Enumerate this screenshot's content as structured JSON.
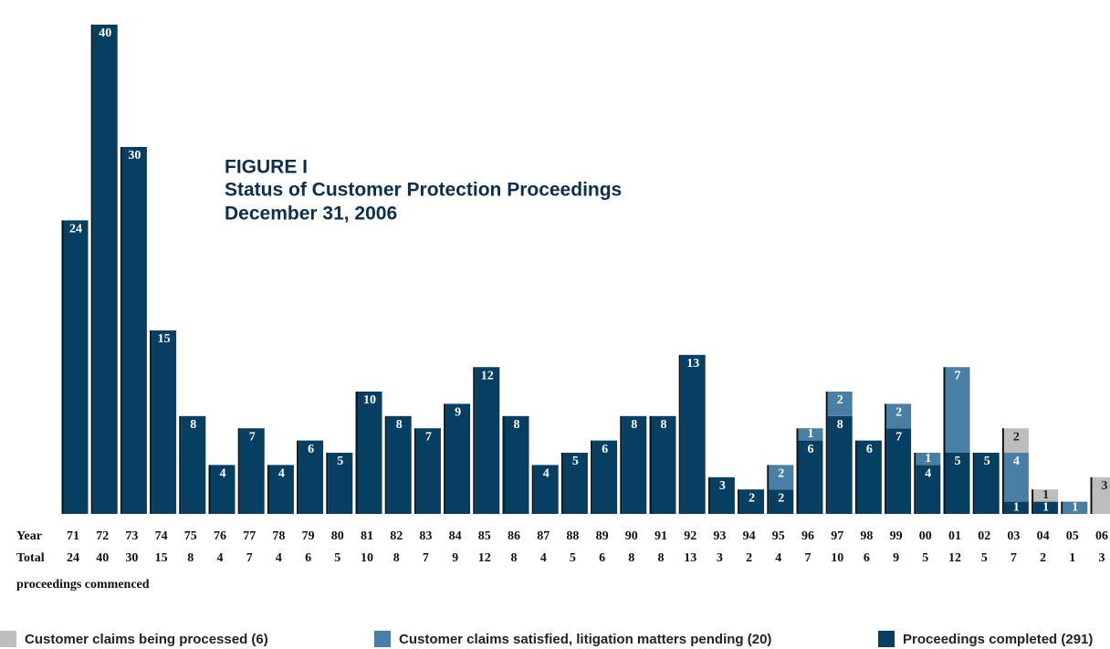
{
  "chart_data": {
    "type": "stacked-bar",
    "title": [
      "FIGURE I",
      "Status of Customer Protection Proceedings",
      "December 31, 2006"
    ],
    "row_labels": {
      "year": "Year",
      "total": "Total",
      "note": "proceedings commenced"
    },
    "categories": [
      "71",
      "72",
      "73",
      "74",
      "75",
      "76",
      "77",
      "78",
      "79",
      "80",
      "81",
      "82",
      "83",
      "84",
      "85",
      "86",
      "87",
      "88",
      "89",
      "90",
      "91",
      "92",
      "93",
      "94",
      "95",
      "96",
      "97",
      "98",
      "99",
      "00",
      "01",
      "02",
      "03",
      "04",
      "05",
      "06"
    ],
    "totals": [
      24,
      40,
      30,
      15,
      8,
      4,
      7,
      4,
      6,
      5,
      10,
      8,
      7,
      9,
      12,
      8,
      4,
      5,
      6,
      8,
      8,
      13,
      3,
      2,
      4,
      7,
      10,
      6,
      9,
      5,
      12,
      5,
      7,
      2,
      1,
      3
    ],
    "ylim": [
      0,
      40
    ],
    "series": [
      {
        "name": "Proceedings completed (291)",
        "color": "#073f63",
        "values": [
          24,
          40,
          30,
          15,
          8,
          4,
          7,
          4,
          6,
          5,
          10,
          8,
          7,
          9,
          12,
          8,
          4,
          5,
          6,
          8,
          8,
          13,
          3,
          2,
          2,
          6,
          8,
          6,
          7,
          4,
          5,
          5,
          1,
          1,
          0,
          0
        ]
      },
      {
        "name": "Customer claims satisfied, litigation matters pending (20)",
        "color": "#4a7fa5",
        "values": [
          0,
          0,
          0,
          0,
          0,
          0,
          0,
          0,
          0,
          0,
          0,
          0,
          0,
          0,
          0,
          0,
          0,
          0,
          0,
          0,
          0,
          0,
          0,
          0,
          2,
          1,
          2,
          0,
          2,
          1,
          7,
          0,
          4,
          0,
          1,
          0
        ]
      },
      {
        "name": "Customer claims being processed (6)",
        "color": "#bdbdbd",
        "values": [
          0,
          0,
          0,
          0,
          0,
          0,
          0,
          0,
          0,
          0,
          0,
          0,
          0,
          0,
          0,
          0,
          0,
          0,
          0,
          0,
          0,
          0,
          0,
          0,
          0,
          0,
          0,
          0,
          0,
          0,
          0,
          0,
          2,
          1,
          0,
          3
        ]
      }
    ],
    "legend_order": [
      2,
      1,
      0
    ]
  }
}
